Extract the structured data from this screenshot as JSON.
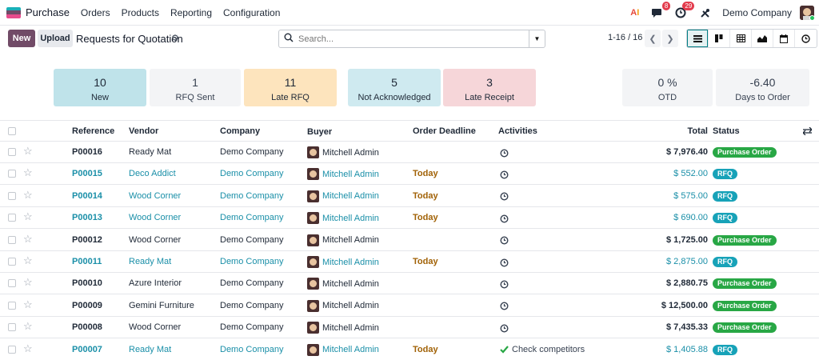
{
  "app": {
    "name": "Purchase",
    "menu": [
      "Orders",
      "Products",
      "Reporting",
      "Configuration"
    ],
    "chat_badge": "8",
    "activity_badge": "29",
    "company": "Demo Company",
    "brand_colors": {
      "primary": "#714b67",
      "accent": "#017e84",
      "po": "#28a745",
      "rfq": "#17a2b8"
    }
  },
  "control": {
    "new_label": "New",
    "upload_label": "Upload",
    "title": "Requests for Quotation",
    "search_placeholder": "Search...",
    "pager": "1-16 / 16"
  },
  "kpis": [
    {
      "value": "10",
      "label": "New"
    },
    {
      "value": "1",
      "label": "RFQ Sent"
    },
    {
      "value": "11",
      "label": "Late RFQ"
    },
    {
      "value": "5",
      "label": "Not Acknowledged"
    },
    {
      "value": "3",
      "label": "Late Receipt"
    },
    {
      "value": "0 %",
      "label": "OTD"
    },
    {
      "value": "-6.40",
      "label": "Days to Order"
    }
  ],
  "table": {
    "headers": {
      "reference": "Reference",
      "vendor": "Vendor",
      "company": "Company",
      "buyer": "Buyer",
      "deadline": "Order Deadline",
      "activities": "Activities",
      "total": "Total",
      "status": "Status"
    },
    "rows": [
      {
        "reference": "P00016",
        "vendor": "Ready Mat",
        "company": "Demo Company",
        "buyer": "Mitchell Admin",
        "deadline": "",
        "activity": "",
        "total": "$ 7,976.40",
        "status": "Purchase Order",
        "kind": "done"
      },
      {
        "reference": "P00015",
        "vendor": "Deco Addict",
        "company": "Demo Company",
        "buyer": "Mitchell Admin",
        "deadline": "Today",
        "activity": "",
        "total": "$ 552.00",
        "status": "RFQ",
        "kind": "draft"
      },
      {
        "reference": "P00014",
        "vendor": "Wood Corner",
        "company": "Demo Company",
        "buyer": "Mitchell Admin",
        "deadline": "Today",
        "activity": "",
        "total": "$ 575.00",
        "status": "RFQ",
        "kind": "draft"
      },
      {
        "reference": "P00013",
        "vendor": "Wood Corner",
        "company": "Demo Company",
        "buyer": "Mitchell Admin",
        "deadline": "Today",
        "activity": "",
        "total": "$ 690.00",
        "status": "RFQ",
        "kind": "draft"
      },
      {
        "reference": "P00012",
        "vendor": "Wood Corner",
        "company": "Demo Company",
        "buyer": "Mitchell Admin",
        "deadline": "",
        "activity": "",
        "total": "$ 1,725.00",
        "status": "Purchase Order",
        "kind": "done"
      },
      {
        "reference": "P00011",
        "vendor": "Ready Mat",
        "company": "Demo Company",
        "buyer": "Mitchell Admin",
        "deadline": "Today",
        "activity": "",
        "total": "$ 2,875.00",
        "status": "RFQ",
        "kind": "draft"
      },
      {
        "reference": "P00010",
        "vendor": "Azure Interior",
        "company": "Demo Company",
        "buyer": "Mitchell Admin",
        "deadline": "",
        "activity": "",
        "total": "$ 2,880.75",
        "status": "Purchase Order",
        "kind": "done"
      },
      {
        "reference": "P00009",
        "vendor": "Gemini Furniture",
        "company": "Demo Company",
        "buyer": "Mitchell Admin",
        "deadline": "",
        "activity": "",
        "total": "$ 12,500.00",
        "status": "Purchase Order",
        "kind": "done"
      },
      {
        "reference": "P00008",
        "vendor": "Wood Corner",
        "company": "Demo Company",
        "buyer": "Mitchell Admin",
        "deadline": "",
        "activity": "",
        "total": "$ 7,435.33",
        "status": "Purchase Order",
        "kind": "done"
      },
      {
        "reference": "P00007",
        "vendor": "Ready Mat",
        "company": "Demo Company",
        "buyer": "Mitchell Admin",
        "deadline": "Today",
        "activity": "Check competitors",
        "total": "$ 1,405.88",
        "status": "RFQ",
        "kind": "draft"
      }
    ]
  }
}
